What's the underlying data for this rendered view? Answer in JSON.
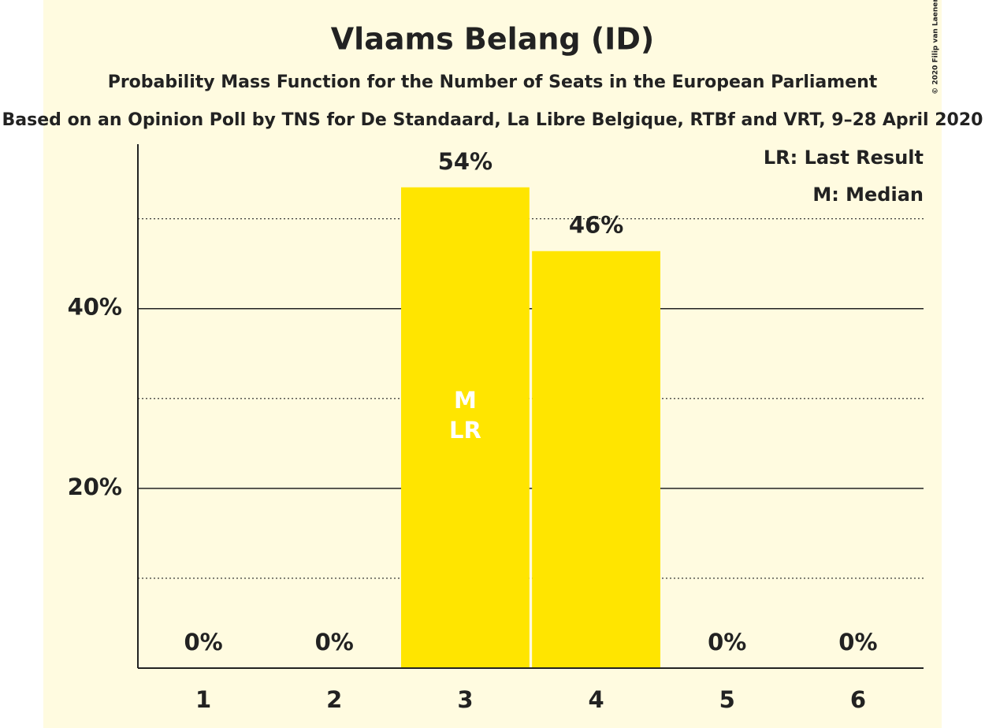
{
  "chart_data": {
    "type": "bar",
    "title": "Vlaams Belang (ID)",
    "subtitle": "Probability Mass Function for the Number of Seats in the European Parliament",
    "subtitle2": "Based on an Opinion Poll by TNS for De Standaard, La Libre Belgique, RTBf and VRT, 9–28 April 2020",
    "copyright": "© 2020 Filip van Laenen",
    "categories": [
      "1",
      "2",
      "3",
      "4",
      "5",
      "6"
    ],
    "values": [
      0,
      0,
      53.5,
      46.4,
      0,
      0
    ],
    "value_labels": [
      "0%",
      "0%",
      "54%",
      "46%",
      "0%",
      "0%"
    ],
    "color": "#FFE500",
    "ylim": [
      0,
      58.3
    ],
    "yticks": [
      {
        "value": 20,
        "label": "20%"
      },
      {
        "value": 40,
        "label": "40%"
      }
    ],
    "minor_yticks": [
      10,
      30,
      50
    ],
    "grid": true,
    "annotations": [
      {
        "category": 2,
        "lines": [
          "M",
          "LR"
        ]
      }
    ],
    "legend": [
      "LR: Last Result",
      "M: Median"
    ],
    "legend_position": "upper right"
  }
}
